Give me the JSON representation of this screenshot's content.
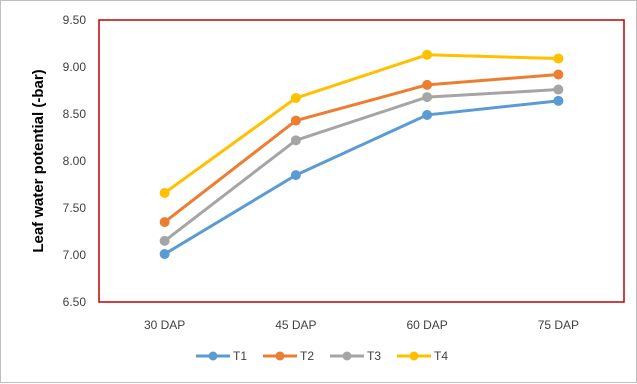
{
  "chart_data": {
    "type": "line",
    "title": "",
    "xlabel": "",
    "ylabel": "Leaf water potential (-bar)",
    "categories": [
      "30 DAP",
      "45 DAP",
      "60 DAP",
      "75 DAP"
    ],
    "y_ticks": [
      "6.50",
      "7.00",
      "7.50",
      "8.00",
      "8.50",
      "9.00",
      "9.50"
    ],
    "ylim": [
      6.5,
      9.5
    ],
    "grid": false,
    "legend_position": "bottom",
    "plot_border_color": "#c00000",
    "series": [
      {
        "name": "T1",
        "color": "#5b9bd5",
        "values": [
          7.01,
          7.85,
          8.49,
          8.64
        ]
      },
      {
        "name": "T2",
        "color": "#ed7d31",
        "values": [
          7.35,
          8.43,
          8.81,
          8.92
        ]
      },
      {
        "name": "T3",
        "color": "#a5a5a5",
        "values": [
          7.15,
          8.22,
          8.68,
          8.76
        ]
      },
      {
        "name": "T4",
        "color": "#ffc000",
        "values": [
          7.66,
          8.67,
          9.13,
          9.09
        ]
      }
    ]
  }
}
